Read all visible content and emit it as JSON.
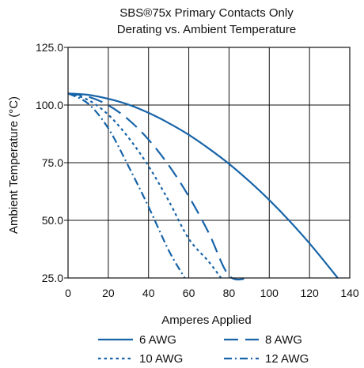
{
  "chart_data": {
    "type": "line",
    "title": "SBS®75x Primary Contacts Only",
    "subtitle": "Derating vs. Ambient Temperature",
    "xlabel": "Amperes Applied",
    "ylabel": "Ambient Temperature (°C)",
    "xlim": [
      0,
      140
    ],
    "ylim": [
      25,
      125
    ],
    "x_ticks": [
      "0",
      "20",
      "40",
      "60",
      "80",
      "100",
      "120",
      "140"
    ],
    "y_ticks": [
      "25.0",
      "50.0",
      "75.0",
      "100.0",
      "125.0"
    ],
    "grid": true,
    "legend_position": "bottom",
    "line_color": "#1764A8",
    "series": [
      {
        "name": "6 AWG",
        "dash": "solid",
        "x": [
          0,
          10,
          20,
          30,
          40,
          50,
          60,
          70,
          80,
          90,
          100,
          110,
          120,
          130,
          134
        ],
        "y": [
          105,
          104.4,
          102.7,
          100.2,
          96.6,
          92.2,
          87.1,
          81.1,
          74.5,
          67.0,
          58.8,
          49.8,
          40.0,
          29.4,
          25
        ]
      },
      {
        "name": "8 AWG",
        "dash": "dash",
        "x": [
          0,
          10,
          20,
          30,
          40,
          50,
          60,
          70,
          80,
          90,
          100,
          108
        ],
        "y": [
          105,
          103.6,
          99.9,
          93.7,
          85.0,
          73.9,
          60.4,
          44.4,
          26,
          25,
          25,
          25
        ]
      },
      {
        "name": "10 AWG",
        "dash": "dot",
        "x": [
          0,
          10,
          20,
          30,
          40,
          50,
          60,
          70,
          76
        ],
        "y": [
          105,
          102.2,
          95.8,
          85.9,
          73.5,
          58.5,
          42.0,
          32.0,
          25
        ]
      },
      {
        "name": "12 AWG",
        "dash": "dashdot",
        "x": [
          0,
          10,
          20,
          30,
          40,
          50,
          58
        ],
        "y": [
          105,
          100.6,
          89.9,
          73.5,
          55.9,
          37.0,
          25
        ]
      }
    ]
  }
}
